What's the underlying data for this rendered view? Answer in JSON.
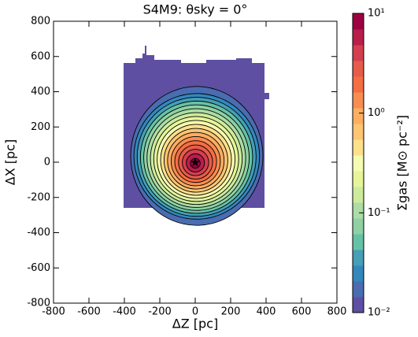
{
  "chart_data": {
    "type": "heatmap",
    "title": "S4M9:  θsky = 0°",
    "x_label": "ΔZ [pc]",
    "y_label": "ΔX [pc]",
    "xlim": [
      -800,
      800
    ],
    "ylim": [
      -800,
      800
    ],
    "xticks": [
      -800,
      -600,
      -400,
      -200,
      0,
      200,
      400,
      600,
      800
    ],
    "yticks": [
      -800,
      -600,
      -400,
      -200,
      0,
      200,
      400,
      600,
      800
    ],
    "colorbar": {
      "label": "Σgas [M⊙ pc⁻²]",
      "log_scale": true,
      "lim": [
        0.01,
        10
      ],
      "ticks": [
        {
          "value": 0.01,
          "label": "10⁻²"
        },
        {
          "value": 0.1,
          "label": "10⁻¹"
        },
        {
          "value": 1,
          "label": "10⁰"
        },
        {
          "value": 10,
          "label": "10¹"
        }
      ],
      "colors": [
        "#5e4fa2",
        "#4a6cb0",
        "#3288bd",
        "#459fb7",
        "#66c2a5",
        "#8ed1a4",
        "#abdda4",
        "#cdeb9d",
        "#e6f598",
        "#f6fbb2",
        "#fee08b",
        "#fdc574",
        "#fdae61",
        "#f88d52",
        "#f46d43",
        "#e55c4a",
        "#d53e4f",
        "#b91e4b",
        "#9e0142"
      ]
    }
  }
}
